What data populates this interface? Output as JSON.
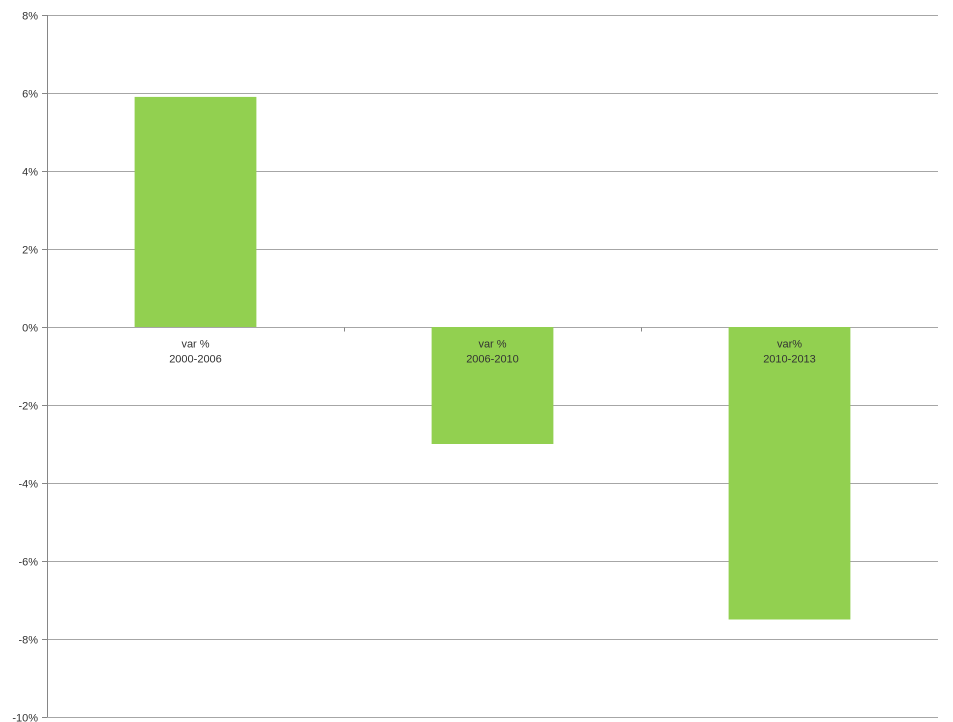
{
  "chart_data": {
    "type": "bar",
    "title": "",
    "xlabel": "",
    "ylabel": "",
    "categories": [
      [
        "var %",
        "2000-2006"
      ],
      [
        "var %",
        "2006-2010"
      ],
      [
        "var%",
        "2010-2013"
      ]
    ],
    "values": [
      5.9,
      -3.0,
      -7.5
    ],
    "ylim": [
      -10,
      8
    ],
    "yticks": [
      8,
      6,
      4,
      2,
      0,
      -2,
      -4,
      -6,
      -8,
      -10
    ],
    "ytick_labels": [
      "8%",
      "6%",
      "4%",
      "2%",
      "0%",
      "-2%",
      "-4%",
      "-6%",
      "-8%",
      "-10%"
    ],
    "grid": true,
    "legend": "none",
    "colors": {
      "bar": "#92D050",
      "grid": "#A6A6A6",
      "axis": "#868686",
      "text": "#333333"
    }
  }
}
